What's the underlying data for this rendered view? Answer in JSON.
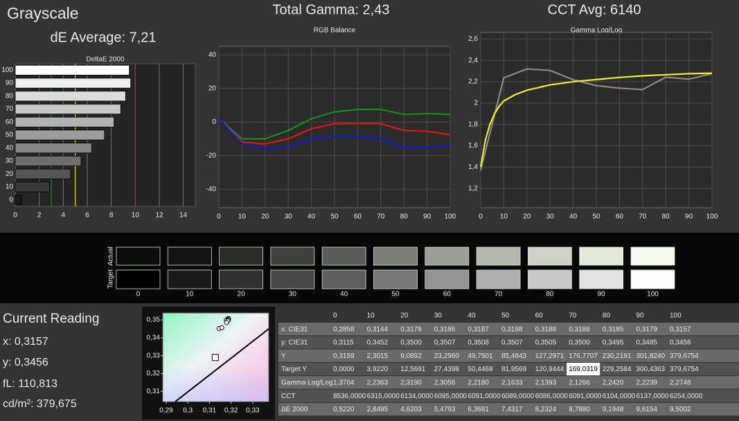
{
  "header": {
    "title": "Grayscale",
    "de_average": "dE Average: 7,21",
    "total_gamma": "Total Gamma: 2,43",
    "cct_avg": "CCT Avg: 6140"
  },
  "chart_data": [
    {
      "type": "bar",
      "orientation": "horizontal",
      "title": "DeltaE 2000",
      "categories": [
        "0",
        "10",
        "20",
        "30",
        "40",
        "50",
        "60",
        "70",
        "80",
        "90",
        "100"
      ],
      "values": [
        0.522,
        2.8495,
        4.6203,
        5.4793,
        6.3681,
        7.4317,
        8.2324,
        8.788,
        9.1948,
        9.6154,
        9.5002
      ],
      "colors": [
        "#1a1a1a",
        "#3a3a3a",
        "#555555",
        "#6e6e6e",
        "#868686",
        "#9d9d9d",
        "#b3b3b3",
        "#c8c8c8",
        "#dcdcdc",
        "#eeeeee",
        "#ffffff"
      ],
      "xlim": [
        0,
        15
      ],
      "xticks": [
        0,
        2,
        4,
        6,
        8,
        10,
        12,
        14
      ],
      "grid": true,
      "reference_lines": [
        {
          "value": 3,
          "color": "#1f8f1f"
        },
        {
          "value": 5,
          "color": "#e0e020"
        },
        {
          "value": 10,
          "color": "#d02020"
        }
      ]
    },
    {
      "type": "line",
      "title": "RGB Balance",
      "x": [
        0,
        10,
        20,
        30,
        40,
        50,
        60,
        70,
        80,
        90,
        100
      ],
      "xlim": [
        0,
        100
      ],
      "xticks": [
        0,
        10,
        20,
        30,
        40,
        50,
        60,
        70,
        80,
        90,
        100
      ],
      "ylim": [
        -51,
        45
      ],
      "yticks": [
        40,
        20,
        0,
        -20,
        -40
      ],
      "grid": true,
      "series": [
        {
          "color": "#1a8c1a",
          "values": [
            2,
            -10,
            -10,
            -5,
            2,
            6,
            7.5,
            7.5,
            4.5,
            5,
            4.5
          ]
        },
        {
          "color": "#e01515",
          "values": [
            2,
            -12,
            -13,
            -10,
            -4,
            -1,
            -1,
            -1,
            -5,
            -5.5,
            -7.5
          ]
        },
        {
          "color": "#1515d8",
          "values": [
            2,
            -13,
            -16,
            -15,
            -10,
            -8.5,
            -8.5,
            -10,
            -15,
            -15,
            -14
          ]
        }
      ]
    },
    {
      "type": "line",
      "title": "Gamma Log/Log",
      "xlim": [
        0,
        100
      ],
      "xticks": [
        0,
        10,
        20,
        30,
        40,
        50,
        60,
        70,
        80,
        90,
        100
      ],
      "ylim": [
        1.02,
        2.66
      ],
      "yticks": [
        {
          "value": 1.2,
          "label": "1,2"
        },
        {
          "value": 1.4,
          "label": "1,4"
        },
        {
          "value": 1.6,
          "label": "1,6"
        },
        {
          "value": 1.8,
          "label": "1,8"
        },
        2,
        {
          "value": 2.2,
          "label": "2,2"
        },
        {
          "value": 2.4,
          "label": "2,4"
        },
        {
          "value": 2.6,
          "label": "2,6"
        }
      ],
      "grid": true,
      "series": [
        {
          "color": "#8a8a8a",
          "x": [
            0,
            10,
            20,
            30,
            40,
            50,
            60,
            70,
            80,
            90,
            100
          ],
          "values": [
            1.3704,
            2.2363,
            2.319,
            2.3056,
            2.218,
            2.1633,
            2.1393,
            2.1266,
            2.242,
            2.2239,
            2.2748
          ]
        },
        {
          "color": "#f2f21a",
          "x": [
            0,
            2,
            4,
            6,
            8,
            10,
            15,
            20,
            30,
            40,
            50,
            60,
            70,
            80,
            90,
            100
          ],
          "values": [
            1.4,
            1.65,
            1.8,
            1.9,
            1.97,
            2.02,
            2.08,
            2.12,
            2.17,
            2.2,
            2.22,
            2.24,
            2.255,
            2.265,
            2.275,
            2.28
          ]
        }
      ]
    },
    {
      "type": "scatter",
      "xlim": [
        0.2884,
        0.3374
      ],
      "ylim": [
        0.3043,
        0.3539
      ],
      "xticks": [
        {
          "value": 0.29,
          "label": "0,29"
        },
        {
          "value": 0.3,
          "label": "0,3"
        },
        {
          "value": 0.31,
          "label": "0,31"
        },
        {
          "value": 0.32,
          "label": "0,32"
        },
        {
          "value": 0.33,
          "label": "0,33"
        }
      ],
      "yticks": [
        {
          "value": 0.31,
          "label": "0,31"
        },
        {
          "value": 0.32,
          "label": "0,32"
        },
        {
          "value": 0.33,
          "label": "0,33"
        },
        {
          "value": 0.34,
          "label": "0,34"
        },
        {
          "value": 0.35,
          "label": "0,35"
        }
      ],
      "series": [
        {
          "marker": "line",
          "color": "#000000",
          "x": [
            0.2942,
            0.3374
          ],
          "values": [
            0.3043,
            0.345
          ]
        },
        {
          "marker": "square",
          "color": "#000000",
          "x": [
            0.3127
          ],
          "values": [
            0.329
          ]
        },
        {
          "marker": "circle",
          "color": "#000000",
          "x": [
            0.3144,
            0.3178,
            0.3186,
            0.3187,
            0.3188,
            0.3188,
            0.3188,
            0.3185,
            0.3179,
            0.3157
          ],
          "values": [
            0.3452,
            0.35,
            0.3507,
            0.3508,
            0.3507,
            0.3505,
            0.35,
            0.3495,
            0.3485,
            0.3456
          ]
        }
      ]
    }
  ],
  "swatches": {
    "actual_label": "Actual",
    "target_label": "Target",
    "levels": [
      "0",
      "10",
      "20",
      "30",
      "40",
      "50",
      "60",
      "70",
      "80",
      "90",
      "100"
    ],
    "actual": [
      "#0a0c0a",
      "#131413",
      "#2a2c28",
      "#40423d",
      "#5b5e58",
      "#7b7e77",
      "#9a9e96",
      "#b4b8ae",
      "#cdd1c6",
      "#e4eadb",
      "#f4fbee"
    ],
    "target": [
      "#000000",
      "#1a1a1a",
      "#303030",
      "#474747",
      "#5f5f5f",
      "#787878",
      "#939393",
      "#aeaeae",
      "#c8c8c8",
      "#e3e3e3",
      "#fdfdfd"
    ]
  },
  "reading": {
    "title": "Current Reading",
    "x": "x: 0,3157",
    "y": "y: 0,3456",
    "fl": "fL: 110,813",
    "cdm2": "cd/m²: 379,675"
  },
  "table": {
    "columns": [
      "0",
      "10",
      "20",
      "30",
      "40",
      "50",
      "60",
      "70",
      "80",
      "90",
      "100"
    ],
    "rows": [
      {
        "label": "x: CIE31",
        "cells": [
          "0,2858",
          "0,3144",
          "0,3178",
          "0,3186",
          "0,3187",
          "0,3188",
          "0,3188",
          "0,3188",
          "0,3185",
          "0,3179",
          "0,3157"
        ]
      },
      {
        "label": "y: CIE31",
        "cells": [
          "0,3115",
          "0,3452",
          "0,3500",
          "0,3507",
          "0,3508",
          "0,3507",
          "0,3505",
          "0,3500",
          "0,3495",
          "0,3485",
          "0,3456"
        ]
      },
      {
        "label": "Y",
        "cells": [
          "0,3159",
          "2,3015",
          "9,0892",
          "23,2960",
          "49,7501",
          "85,4843",
          "127,2971",
          "176,7707",
          "230,2181",
          "301,8240",
          "379,6754"
        ]
      },
      {
        "label": "Target Y",
        "cells": [
          "0,0000",
          "3,9220",
          "12,5691",
          "27,4398",
          "50,4468",
          "81,9569",
          "120,9444",
          "169,0319",
          "229,2584",
          "300,4363",
          "379,6754"
        ]
      },
      {
        "label": "Gamma Log/Log",
        "cells": [
          "1,3704",
          "2,2363",
          "2,3190",
          "2,3056",
          "2,2180",
          "2,1633",
          "2,1393",
          "2,1266",
          "2,2420",
          "2,2239",
          "2,2748"
        ]
      },
      {
        "label": "CCT",
        "cells": [
          "8536,0000",
          "6315,0000",
          "6134,0000",
          "6095,0000",
          "6091,0000",
          "6089,0000",
          "6086,0000",
          "6091,0000",
          "6104,0000",
          "6137,0000",
          "6254,0000"
        ]
      },
      {
        "label": "ΔE 2000",
        "cells": [
          "0,5220",
          "2,8495",
          "4,6203",
          "5,4793",
          "6,3681",
          "7,4317",
          "8,2324",
          "8,7880",
          "9,1948",
          "9,6154",
          "9,5002"
        ]
      }
    ]
  }
}
